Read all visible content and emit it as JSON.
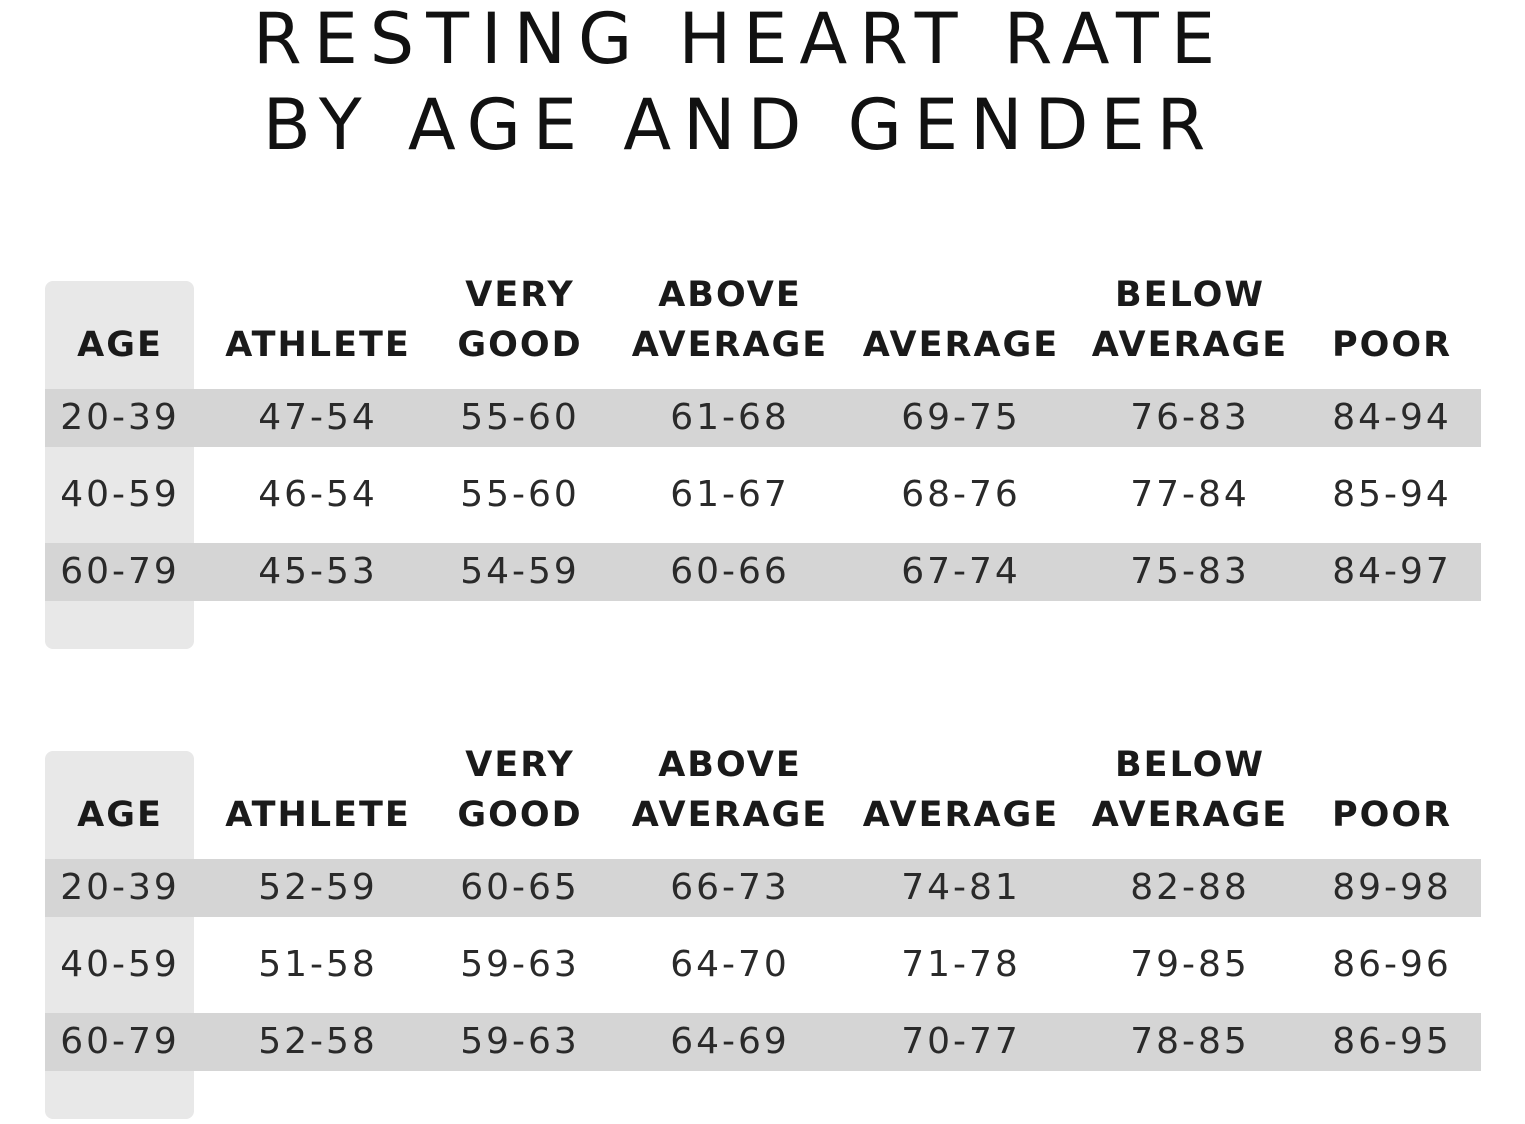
{
  "title": {
    "line1": "RESTING HEART RATE",
    "line2": "BY AGE AND GENDER"
  },
  "headers": [
    {
      "line1": "",
      "line2": "AGE"
    },
    {
      "line1": "",
      "line2": "ATHLETE"
    },
    {
      "line1": "VERY",
      "line2": "GOOD"
    },
    {
      "line1": "ABOVE",
      "line2": "AVERAGE"
    },
    {
      "line1": "",
      "line2": "AVERAGE"
    },
    {
      "line1": "BELOW",
      "line2": "AVERAGE"
    },
    {
      "line1": "",
      "line2": "POOR"
    }
  ],
  "tables": [
    {
      "rows": [
        [
          "20-39",
          "47-54",
          "55-60",
          "61-68",
          "69-75",
          "76-83",
          "84-94"
        ],
        [
          "40-59",
          "46-54",
          "55-60",
          "61-67",
          "68-76",
          "77-84",
          "85-94"
        ],
        [
          "60-79",
          "45-53",
          "54-59",
          "60-66",
          "67-74",
          "75-83",
          "84-97"
        ]
      ]
    },
    {
      "rows": [
        [
          "20-39",
          "52-59",
          "60-65",
          "66-73",
          "74-81",
          "82-88",
          "89-98"
        ],
        [
          "40-59",
          "51-58",
          "59-63",
          "64-70",
          "71-78",
          "79-85",
          "86-96"
        ],
        [
          "60-79",
          "52-58",
          "59-63",
          "64-69",
          "70-77",
          "78-85",
          "86-95"
        ]
      ]
    }
  ],
  "colors": {
    "age_panel": "#e8e8e8",
    "row_band": "#d5d5d5",
    "text": "#1c1c1c"
  }
}
